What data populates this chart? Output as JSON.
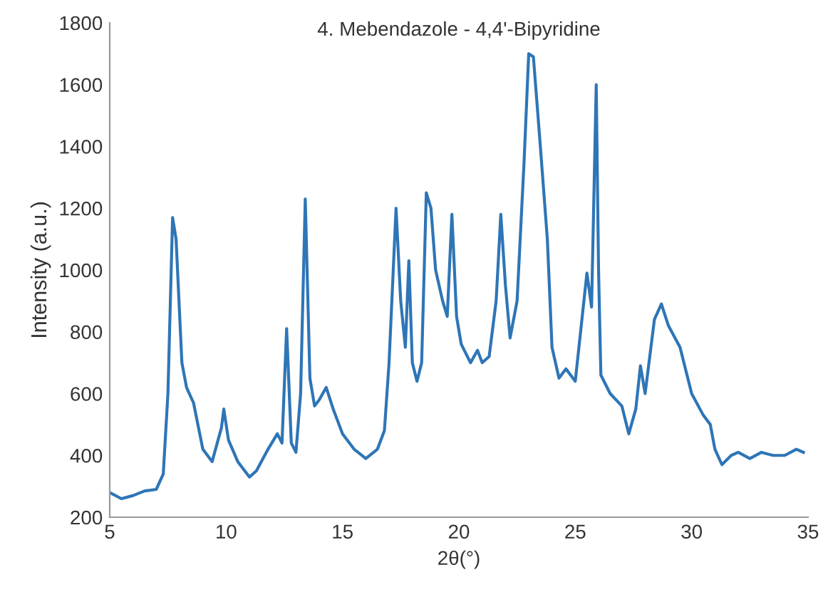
{
  "chart_data": {
    "type": "line",
    "title": "4. Mebendazole - 4,4'-Bipyridine",
    "xlabel": "2θ(°)",
    "ylabel": "Intensity (a.u.)",
    "xlim": [
      5,
      35
    ],
    "xticks": [
      5,
      10,
      15,
      20,
      25,
      30,
      35
    ],
    "ylim": [
      200,
      1800
    ],
    "yticks": [
      200,
      400,
      600,
      800,
      1000,
      1200,
      1400,
      1600,
      1800
    ],
    "grid": false,
    "legend": false,
    "series": [
      {
        "color": "#2e75b6",
        "x": [
          5.0,
          5.5,
          6.0,
          6.5,
          7.0,
          7.3,
          7.5,
          7.7,
          7.85,
          8.1,
          8.3,
          8.6,
          9.0,
          9.4,
          9.8,
          9.9,
          10.1,
          10.5,
          11.0,
          11.3,
          11.8,
          12.2,
          12.4,
          12.6,
          12.8,
          13.0,
          13.2,
          13.4,
          13.6,
          13.8,
          14.0,
          14.3,
          14.6,
          15.0,
          15.5,
          16.0,
          16.5,
          16.8,
          17.0,
          17.3,
          17.5,
          17.7,
          17.85,
          18.0,
          18.2,
          18.4,
          18.6,
          18.8,
          19.0,
          19.3,
          19.5,
          19.7,
          19.9,
          20.1,
          20.5,
          20.8,
          21.0,
          21.3,
          21.6,
          21.8,
          22.0,
          22.2,
          22.5,
          22.8,
          23.0,
          23.2,
          23.5,
          23.8,
          24.0,
          24.3,
          24.6,
          25.0,
          25.3,
          25.5,
          25.7,
          25.9,
          26.0,
          26.1,
          26.5,
          27.0,
          27.3,
          27.6,
          27.8,
          28.0,
          28.4,
          28.7,
          29.0,
          29.5,
          30.0,
          30.5,
          30.8,
          31.0,
          31.3,
          31.7,
          32.0,
          32.5,
          33.0,
          33.5,
          34.0,
          34.5,
          34.8
        ],
        "values": [
          280,
          260,
          270,
          285,
          290,
          340,
          600,
          1170,
          1100,
          700,
          620,
          570,
          420,
          380,
          490,
          550,
          450,
          380,
          330,
          350,
          420,
          470,
          440,
          810,
          440,
          410,
          600,
          1230,
          650,
          560,
          580,
          620,
          550,
          470,
          420,
          390,
          420,
          480,
          700,
          1200,
          900,
          750,
          1030,
          700,
          640,
          700,
          1250,
          1200,
          1000,
          900,
          850,
          1180,
          850,
          760,
          700,
          740,
          700,
          720,
          900,
          1180,
          950,
          780,
          900,
          1350,
          1700,
          1690,
          1400,
          1100,
          750,
          650,
          680,
          640,
          850,
          990,
          880,
          1600,
          1000,
          660,
          600,
          560,
          470,
          550,
          690,
          600,
          840,
          890,
          820,
          750,
          600,
          530,
          500,
          420,
          370,
          400,
          410,
          390,
          410,
          400,
          400,
          420,
          410
        ]
      }
    ]
  }
}
